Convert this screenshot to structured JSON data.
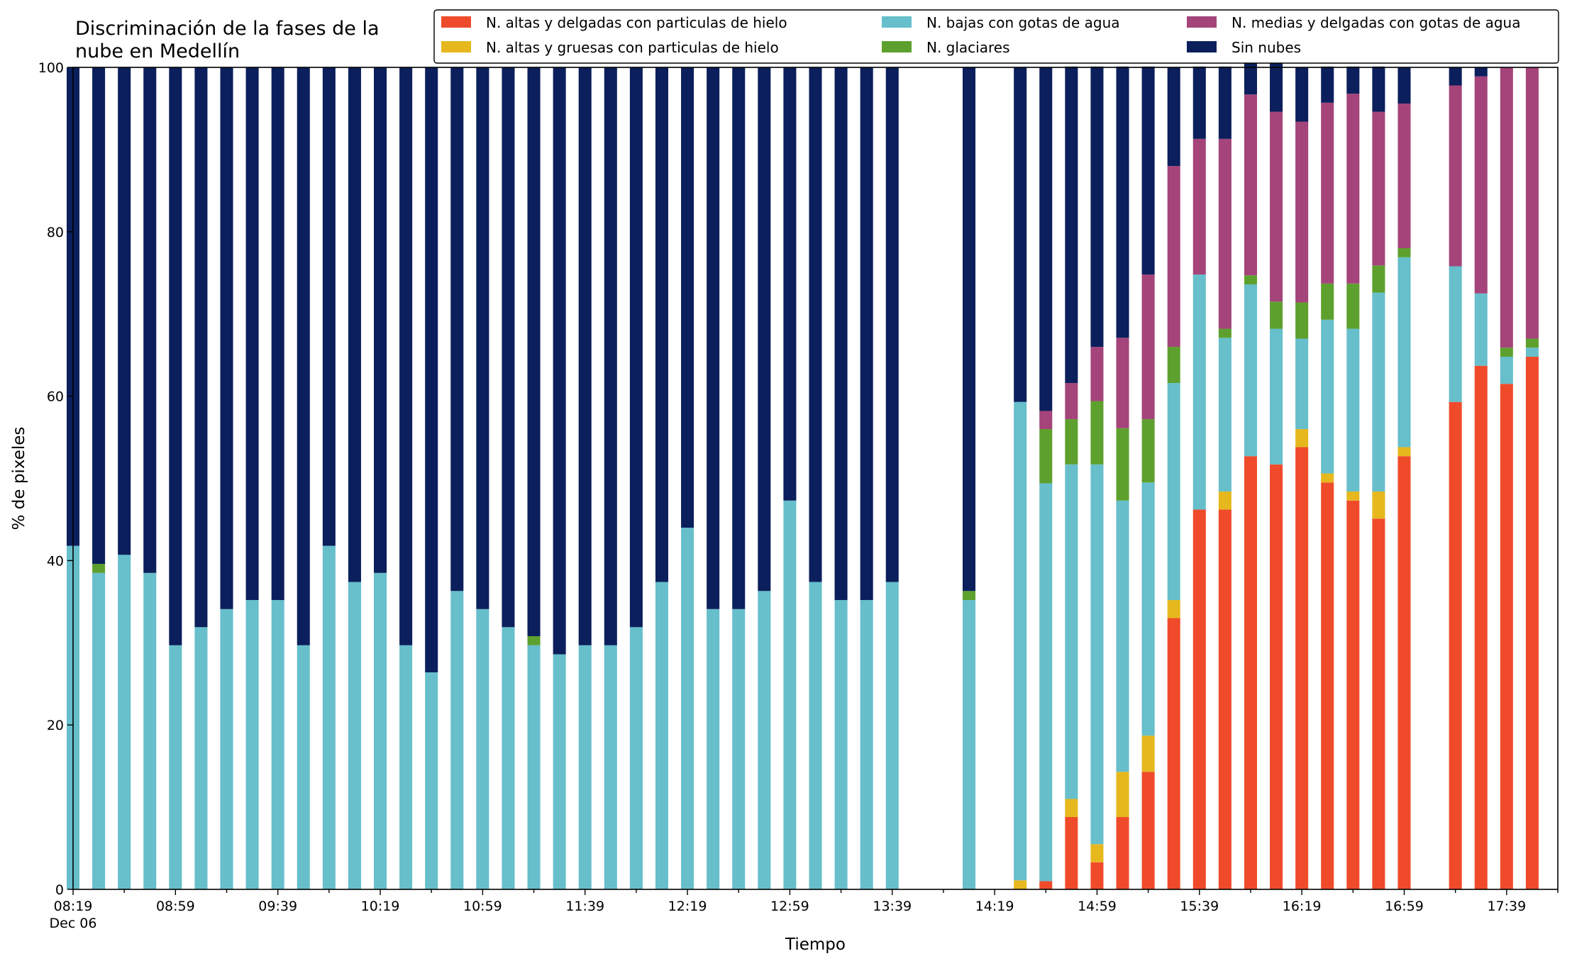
{
  "chart_data": {
    "type": "bar",
    "stacked": true,
    "title": "Discriminación de la fases de la\nnube en Medellín",
    "xlabel": "Tiempo",
    "ylabel": "% de pixeles",
    "ylim": [
      0,
      100
    ],
    "yticks": [
      0,
      20,
      40,
      60,
      80,
      100
    ],
    "x_interval_minutes": 10,
    "x_start": "08:19",
    "x_end": "17:59",
    "xtick_labels": [
      "08:19",
      "08:59",
      "09:39",
      "10:19",
      "10:59",
      "11:39",
      "12:19",
      "12:59",
      "13:39",
      "14:19",
      "14:59",
      "15:39",
      "16:19",
      "16:59",
      "17:39"
    ],
    "xtick_date_label": "Dec 06",
    "legend_position": "top-right",
    "legend_columns": 3,
    "categories": [
      "08:19",
      "08:29",
      "08:39",
      "08:49",
      "08:59",
      "09:09",
      "09:19",
      "09:29",
      "09:39",
      "09:49",
      "09:59",
      "10:09",
      "10:19",
      "10:29",
      "10:39",
      "10:49",
      "10:59",
      "11:09",
      "11:19",
      "11:29",
      "11:39",
      "11:49",
      "11:59",
      "12:09",
      "12:19",
      "12:29",
      "12:39",
      "12:49",
      "12:59",
      "13:09",
      "13:19",
      "13:29",
      "13:39",
      "13:49",
      "13:59",
      "14:09",
      "14:19",
      "14:29",
      "14:39",
      "14:49",
      "14:59",
      "15:09",
      "15:19",
      "15:29",
      "15:39",
      "15:49",
      "15:59",
      "16:09",
      "16:19",
      "16:29",
      "16:39",
      "16:49",
      "16:59",
      "17:09",
      "17:19",
      "17:29",
      "17:39",
      "17:49"
    ],
    "series": [
      {
        "name": "N. altas y delgadas con particulas de hielo",
        "color": "#ef4b2b",
        "values": [
          0,
          0,
          0,
          0,
          0,
          0,
          0,
          0,
          0,
          0,
          0,
          0,
          0,
          0,
          0,
          0,
          0,
          0,
          0,
          0,
          0,
          0,
          0,
          0,
          0,
          0,
          0,
          0,
          0,
          0,
          0,
          0,
          0,
          null,
          null,
          0,
          null,
          0,
          1,
          8.8,
          3.3,
          8.8,
          14.3,
          33,
          46.2,
          46.2,
          52.7,
          51.7,
          53.8,
          49.5,
          47.3,
          45.1,
          52.7,
          null,
          59.3,
          63.7,
          61.5,
          64.8
        ]
      },
      {
        "name": "N. altas y gruesas con particulas de hielo",
        "color": "#e6b81e",
        "values": [
          0,
          0,
          0,
          0,
          0,
          0,
          0,
          0,
          0,
          0,
          0,
          0,
          0,
          0,
          0,
          0,
          0,
          0,
          0,
          0,
          0,
          0,
          0,
          0,
          0,
          0,
          0,
          0,
          0,
          0,
          0,
          0,
          0,
          null,
          null,
          0,
          null,
          1.1,
          0,
          2.2,
          2.2,
          5.5,
          4.4,
          2.2,
          0,
          2.2,
          0,
          0,
          2.2,
          1.1,
          1.1,
          3.3,
          1.1,
          null,
          0,
          0,
          0,
          0
        ]
      },
      {
        "name": "N. bajas con gotas de agua",
        "color": "#66bfcb",
        "values": [
          41.8,
          38.5,
          40.7,
          38.5,
          29.7,
          31.9,
          34.1,
          35.2,
          35.2,
          29.7,
          41.8,
          37.4,
          38.5,
          29.7,
          26.4,
          36.3,
          34.1,
          31.9,
          29.7,
          28.6,
          29.7,
          29.7,
          31.9,
          37.4,
          44,
          34.1,
          34.1,
          36.3,
          47.3,
          37.4,
          35.2,
          35.2,
          37.4,
          null,
          null,
          35.2,
          null,
          58.2,
          48.4,
          40.7,
          46.2,
          33,
          30.8,
          26.4,
          28.6,
          18.7,
          20.9,
          16.5,
          11,
          18.7,
          19.8,
          24.2,
          23.1,
          null,
          16.5,
          8.8,
          3.3,
          1.1
        ]
      },
      {
        "name": "N. glaciares",
        "color": "#5ea02e",
        "values": [
          0,
          1.1,
          0,
          0,
          0,
          0,
          0,
          0,
          0,
          0,
          0,
          0,
          0,
          0,
          0,
          0,
          0,
          0,
          1.1,
          0,
          0,
          0,
          0,
          0,
          0,
          0,
          0,
          0,
          0,
          0,
          0,
          0,
          0,
          null,
          null,
          1.1,
          null,
          0,
          6.6,
          5.5,
          7.7,
          8.8,
          7.7,
          4.4,
          0,
          1.1,
          1.1,
          3.3,
          4.4,
          4.4,
          5.5,
          3.3,
          1.1,
          null,
          0,
          0,
          1.1,
          1.1
        ]
      },
      {
        "name": "N. medias y delgadas con gotas de agua",
        "color": "#a4447a",
        "values": [
          0,
          0,
          0,
          0,
          0,
          0,
          0,
          0,
          0,
          0,
          0,
          0,
          0,
          0,
          0,
          0,
          0,
          0,
          0,
          0,
          0,
          0,
          0,
          0,
          0,
          0,
          0,
          0,
          0,
          0,
          0,
          0,
          0,
          null,
          null,
          0,
          null,
          0,
          2.2,
          4.4,
          6.6,
          11,
          17.6,
          22,
          16.5,
          23.1,
          22,
          23.1,
          22,
          22,
          23.1,
          18.7,
          17.6,
          null,
          22,
          26.4,
          34.1,
          33
        ]
      },
      {
        "name": "Sin nubes",
        "color": "#0b1f5c",
        "values": [
          58.2,
          60.4,
          59.3,
          61.5,
          70.3,
          68.1,
          65.9,
          64.8,
          64.8,
          70.3,
          58.2,
          62.6,
          61.5,
          70.3,
          73.6,
          63.7,
          65.9,
          68.1,
          69.2,
          71.4,
          70.3,
          70.3,
          68.1,
          62.6,
          56,
          65.9,
          65.9,
          63.7,
          52.7,
          62.6,
          64.8,
          64.8,
          62.6,
          null,
          null,
          63.7,
          null,
          40.7,
          41.8,
          38.5,
          34.1,
          33,
          25.3,
          12,
          8.8,
          8.8,
          7.7,
          7.7,
          6.6,
          4.4,
          3.3,
          5.5,
          4.4,
          null,
          2.2,
          1.1,
          0,
          0
        ]
      }
    ]
  }
}
